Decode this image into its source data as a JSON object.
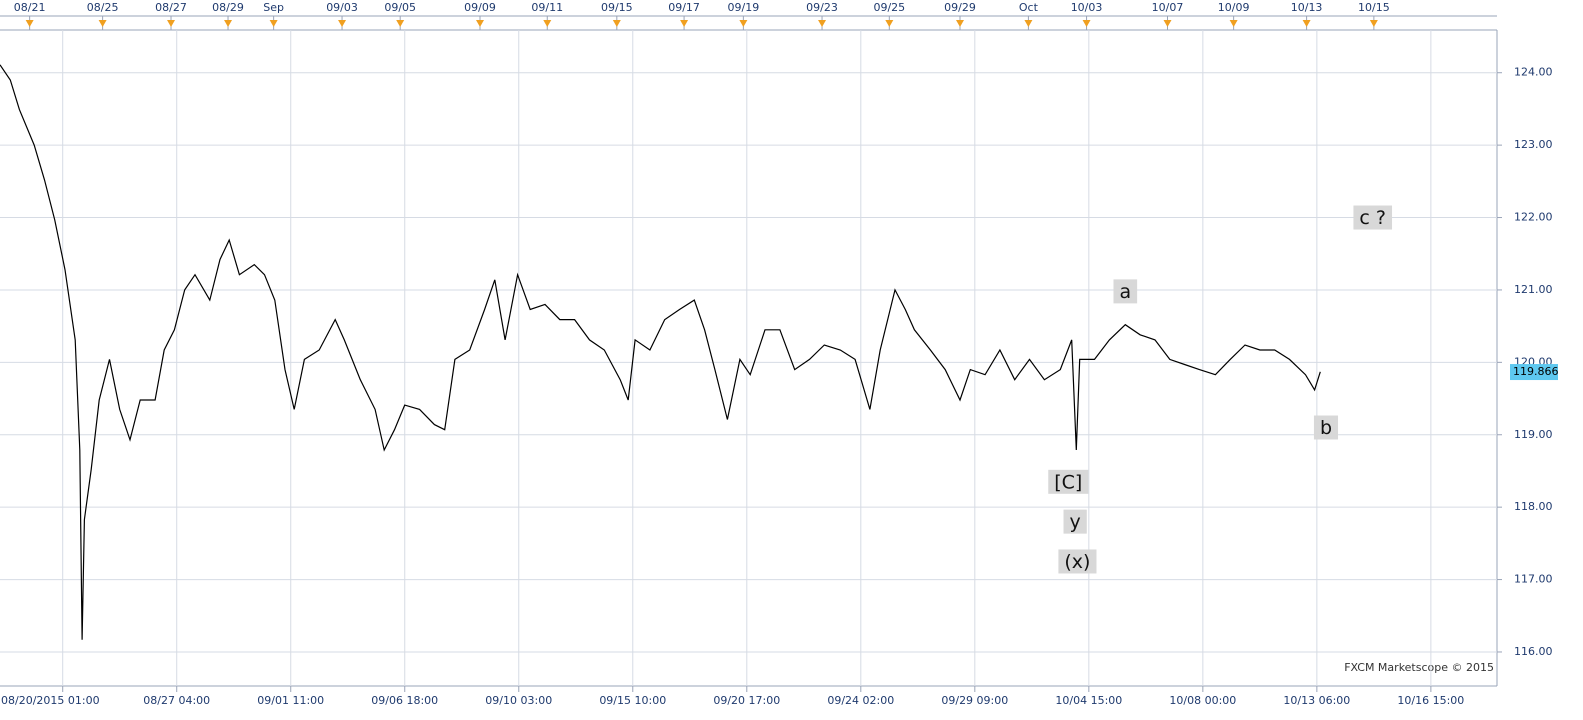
{
  "chart_data": {
    "type": "line",
    "color": "#000000",
    "watermark": "FXCM Marketscope © 2015",
    "last_price": 119.866,
    "x": [
      -55,
      -46,
      -38,
      -25,
      -16,
      -7,
      2,
      11,
      15,
      17,
      19,
      25,
      32,
      41,
      50,
      59,
      68,
      81,
      89,
      98,
      107,
      116,
      129,
      138,
      146,
      155,
      168,
      177,
      186,
      195,
      203,
      212,
      225,
      239,
      247,
      261,
      274,
      282,
      291,
      300,
      313,
      326,
      335,
      344,
      357,
      370,
      379,
      388,
      399,
      410,
      423,
      436,
      449,
      462,
      475,
      489,
      496,
      502,
      515,
      528,
      541,
      554,
      563,
      572,
      583,
      594,
      603,
      616,
      629,
      642,
      655,
      668,
      682,
      695,
      708,
      717,
      730,
      739,
      747,
      761,
      774,
      787,
      796,
      809,
      822,
      835,
      848,
      861,
      875,
      885,
      889,
      892,
      905,
      918,
      932,
      945,
      958,
      971,
      984,
      997,
      1011,
      1024,
      1037,
      1050,
      1063,
      1076,
      1090,
      1098,
      1103
    ],
    "values": [
      124.11,
      123.9,
      123.49,
      123.0,
      122.52,
      121.97,
      121.28,
      120.31,
      118.79,
      116.17,
      117.83,
      118.52,
      119.48,
      120.04,
      119.35,
      118.93,
      119.48,
      119.48,
      120.17,
      120.45,
      121.0,
      121.21,
      120.86,
      121.42,
      121.69,
      121.21,
      121.35,
      121.21,
      120.86,
      119.9,
      119.35,
      120.04,
      120.17,
      120.59,
      120.31,
      119.76,
      119.35,
      118.79,
      119.07,
      119.41,
      119.35,
      119.14,
      119.07,
      120.04,
      120.17,
      120.73,
      121.14,
      120.31,
      121.21,
      120.73,
      120.8,
      120.59,
      120.59,
      120.31,
      120.17,
      119.76,
      119.48,
      120.31,
      120.17,
      120.59,
      120.73,
      120.86,
      120.45,
      119.9,
      119.21,
      120.04,
      119.83,
      120.45,
      120.45,
      119.9,
      120.04,
      120.24,
      120.17,
      120.04,
      119.35,
      120.17,
      121.0,
      120.73,
      120.45,
      120.17,
      119.9,
      119.48,
      119.9,
      119.83,
      120.17,
      119.76,
      120.04,
      119.76,
      119.9,
      120.31,
      118.79,
      120.04,
      120.04,
      120.31,
      120.52,
      120.38,
      120.31,
      120.04,
      119.97,
      119.9,
      119.83,
      120.04,
      120.24,
      120.17,
      120.17,
      120.04,
      119.83,
      119.62,
      119.87
    ],
    "xlim": [
      -55,
      1258
    ],
    "ylim": [
      115.53,
      124.59
    ],
    "grid": true,
    "xticks": [
      {
        "value": 0,
        "label": "08/20/2015 01:00"
      },
      {
        "value": 100,
        "label": "08/27 04:00"
      },
      {
        "value": 200,
        "label": "09/01 11:00"
      },
      {
        "value": 300,
        "label": "09/06 18:00"
      },
      {
        "value": 400,
        "label": "09/10 03:00"
      },
      {
        "value": 500,
        "label": "09/15 10:00"
      },
      {
        "value": 600,
        "label": "09/20 17:00"
      },
      {
        "value": 700,
        "label": "09/24 02:00"
      },
      {
        "value": 800,
        "label": "09/29 09:00"
      },
      {
        "value": 900,
        "label": "10/04 15:00"
      },
      {
        "value": 1000,
        "label": "10/08 00:00"
      },
      {
        "value": 1100,
        "label": "10/13 06:00"
      },
      {
        "value": 1200,
        "label": "10/16 15:00"
      }
    ],
    "top_ticks": [
      {
        "value": -29,
        "label": "08/21"
      },
      {
        "value": 35,
        "label": "08/25"
      },
      {
        "value": 95,
        "label": "08/27"
      },
      {
        "value": 145,
        "label": "08/29"
      },
      {
        "value": 185,
        "label": "Sep"
      },
      {
        "value": 245,
        "label": "09/03"
      },
      {
        "value": 296,
        "label": "09/05"
      },
      {
        "value": 366,
        "label": "09/09"
      },
      {
        "value": 425,
        "label": "09/11"
      },
      {
        "value": 486,
        "label": "09/15"
      },
      {
        "value": 545,
        "label": "09/17"
      },
      {
        "value": 597,
        "label": "09/19"
      },
      {
        "value": 666,
        "label": "09/23"
      },
      {
        "value": 725,
        "label": "09/25"
      },
      {
        "value": 787,
        "label": "09/29"
      },
      {
        "value": 847,
        "label": "Oct"
      },
      {
        "value": 898,
        "label": "10/03"
      },
      {
        "value": 969,
        "label": "10/07"
      },
      {
        "value": 1027,
        "label": "10/09"
      },
      {
        "value": 1091,
        "label": "10/13"
      },
      {
        "value": 1150,
        "label": "10/15"
      }
    ],
    "yticks": [
      {
        "value": 116,
        "label": "116.00"
      },
      {
        "value": 117,
        "label": "117.00"
      },
      {
        "value": 118,
        "label": "118.00"
      },
      {
        "value": 119,
        "label": "119.00"
      },
      {
        "value": 120,
        "label": "120.00"
      },
      {
        "value": 121,
        "label": "121.00"
      },
      {
        "value": 122,
        "label": "122.00"
      },
      {
        "value": 123,
        "label": "123.00"
      },
      {
        "value": 124,
        "label": "124.00"
      }
    ],
    "annotations": [
      {
        "text": "c ?",
        "x": 1149,
        "y": 122.0
      },
      {
        "text": "a",
        "x": 932,
        "y": 120.98
      },
      {
        "text": "b",
        "x": 1108,
        "y": 119.1
      },
      {
        "text": "[C]",
        "x": 882,
        "y": 118.35
      },
      {
        "text": "y",
        "x": 888,
        "y": 117.8
      },
      {
        "text": "(x)",
        "x": 890,
        "y": 117.25
      }
    ]
  }
}
